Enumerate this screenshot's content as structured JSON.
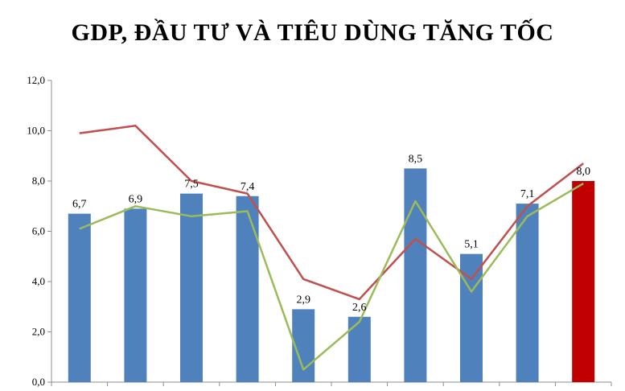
{
  "chart_data": {
    "type": "bar",
    "title": "GDP, ĐẦU TƯ VÀ TIÊU DÙNG TĂNG TỐC",
    "ylim": [
      0,
      12
    ],
    "yticks": [
      "0,0",
      "2,0",
      "4,0",
      "6,0",
      "8,0",
      "10,0",
      "12,0"
    ],
    "grid": false,
    "legend": "none",
    "bars": {
      "values": [
        6.7,
        6.9,
        7.5,
        7.4,
        2.9,
        2.6,
        8.5,
        5.1,
        7.1,
        8.0
      ],
      "labels": [
        "6,7",
        "6,9",
        "7,5",
        "7,4",
        "2,9",
        "2,6",
        "8,5",
        "5,1",
        "7,1",
        "8,0"
      ],
      "color": "#4f81bd",
      "highlight_color": "#c00000",
      "highlight_index": 9
    },
    "series": [
      {
        "values": [
          9.9,
          10.2,
          8.0,
          7.5,
          4.1,
          3.3,
          5.7,
          4.1,
          7.0,
          8.7
        ],
        "color": "#c0504d"
      },
      {
        "values": [
          6.1,
          7.0,
          6.6,
          6.8,
          0.5,
          2.4,
          7.2,
          3.6,
          6.6,
          7.9
        ],
        "color": "#9bbb59"
      }
    ]
  }
}
